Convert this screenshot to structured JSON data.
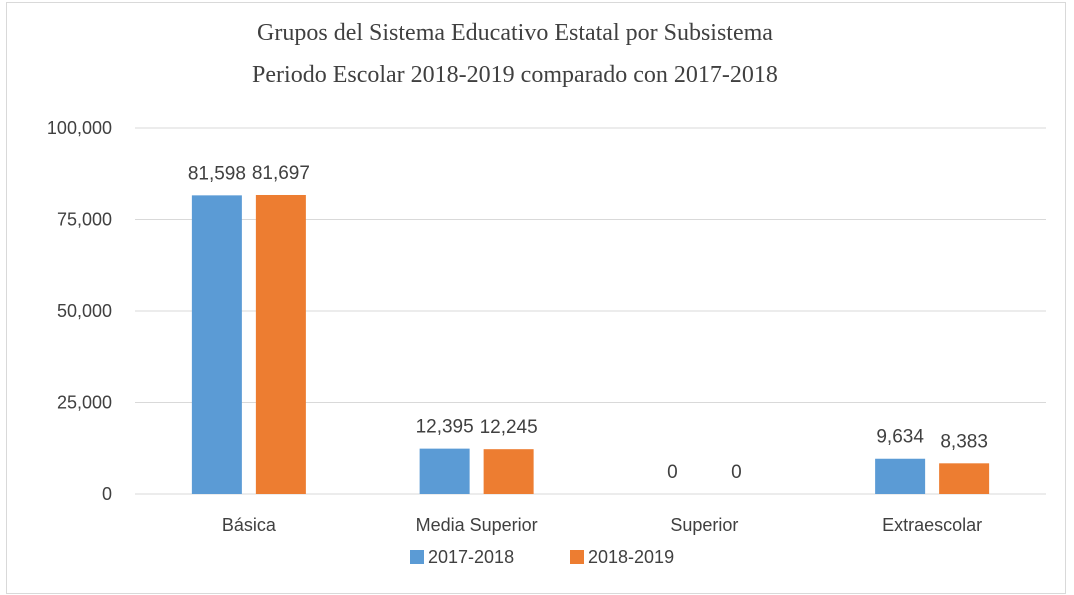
{
  "chart_data": {
    "type": "bar",
    "title": "Grupos del Sistema Educativo Estatal por Subsistema",
    "subtitle": "Periodo Escolar 2018-2019 comparado con 2017-2018",
    "categories": [
      "Básica",
      "Media Superior",
      "Superior",
      "Extraescolar"
    ],
    "series": [
      {
        "name": "2017-2018",
        "values": [
          81598,
          12395,
          0,
          9634
        ],
        "labels": [
          "81,598",
          "12,395",
          "0",
          "9,634"
        ],
        "color": "#5b9bd5"
      },
      {
        "name": "2018-2019",
        "values": [
          81697,
          12245,
          0,
          8383
        ],
        "labels": [
          "81,697",
          "12,245",
          "0",
          "8,383"
        ],
        "color": "#ed7d31"
      }
    ],
    "ylim": [
      0,
      100000
    ],
    "yticks": [
      0,
      25000,
      50000,
      75000,
      100000
    ],
    "ytick_labels": [
      "0",
      "25,000",
      "50,000",
      "75,000",
      "100,000"
    ],
    "grid": true,
    "legend_position": "bottom",
    "gridline_color": "#d9d9d9"
  }
}
